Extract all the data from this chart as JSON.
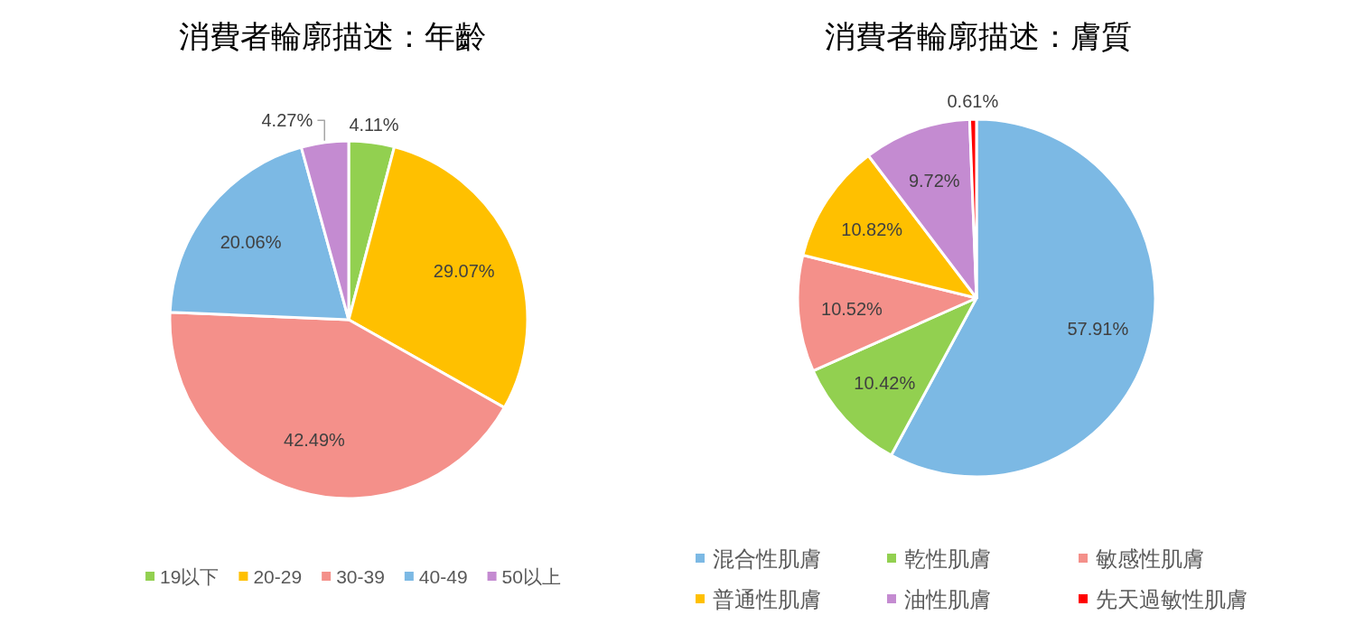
{
  "chart_data": [
    {
      "type": "pie",
      "title": "消費者輪廓描述：年齡",
      "categories": [
        "19以下",
        "20-29",
        "30-39",
        "40-49",
        "50以上"
      ],
      "values": [
        4.11,
        29.07,
        42.49,
        20.06,
        4.27
      ],
      "colors": [
        "#92d050",
        "#ffc000",
        "#f4908a",
        "#7cb9e4",
        "#c48bd1"
      ],
      "value_labels": [
        "4.11%",
        "29.07%",
        "42.49%",
        "20.06%",
        "4.27%"
      ],
      "legend": "bottom"
    },
    {
      "type": "pie",
      "title": "消費者輪廓描述：膚質",
      "categories": [
        "混合性肌膚",
        "乾性肌膚",
        "敏感性肌膚",
        "普通性肌膚",
        "油性肌膚",
        "先天過敏性肌膚"
      ],
      "values": [
        57.91,
        10.42,
        10.52,
        10.82,
        9.72,
        0.61
      ],
      "colors": [
        "#7cb9e4",
        "#92d050",
        "#f4908a",
        "#ffc000",
        "#c48bd1",
        "#ff0000"
      ],
      "value_labels": [
        "57.91%",
        "10.42%",
        "10.52%",
        "10.82%",
        "9.72%",
        "0.61%"
      ],
      "legend": "bottom"
    }
  ]
}
